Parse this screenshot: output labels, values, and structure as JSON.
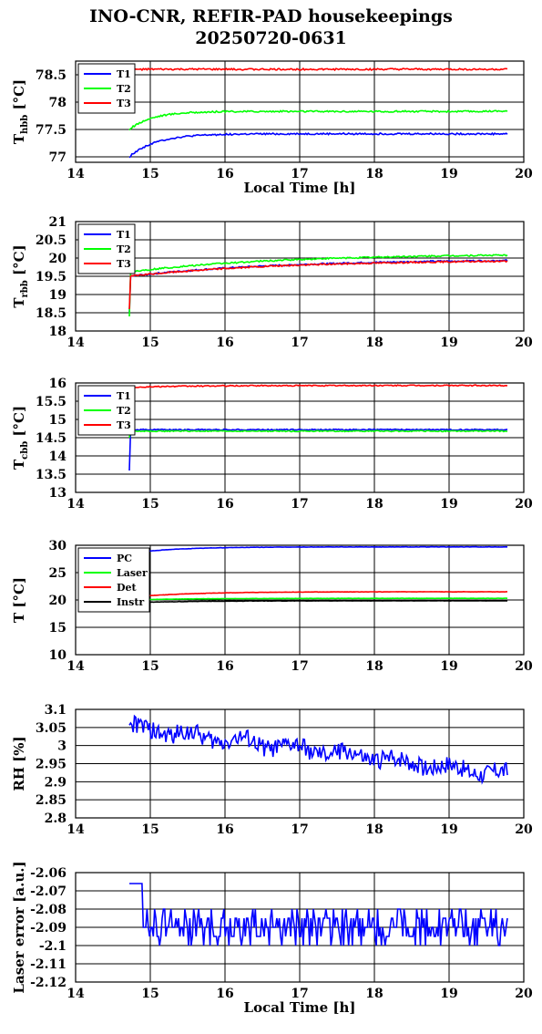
{
  "title_line1": "INO-CNR, REFIR-PAD housekeepings",
  "title_line2": "20250720-0631",
  "chart_data": [
    {
      "type": "line",
      "ylabel_main": "T",
      "ylabel_sub": "hbb",
      "ylabel_unit": " [°C]",
      "xlabel": "Local Time [h]",
      "xlim": [
        14,
        20
      ],
      "ylim": [
        76.9,
        78.75
      ],
      "xticks": [
        "14",
        "15",
        "16",
        "17",
        "18",
        "19",
        "20"
      ],
      "yticks": [
        {
          "v": 77,
          "t": "77"
        },
        {
          "v": 77.5,
          "t": "77.5"
        },
        {
          "v": 78,
          "t": "78"
        },
        {
          "v": 78.5,
          "t": "78.5"
        }
      ],
      "grid": true,
      "legend": "top-left",
      "series": [
        {
          "name": "T1",
          "color": "#0000ff",
          "kind": "approach",
          "start": 77.0,
          "end": 77.42,
          "tau": 0.35,
          "noise": 0.015
        },
        {
          "name": "T2",
          "color": "#00ff00",
          "kind": "approach",
          "start": 77.5,
          "end": 77.83,
          "tau": 0.3,
          "noise": 0.015
        },
        {
          "name": "T3",
          "color": "#ff0000",
          "kind": "flat",
          "start": 78.6,
          "end": 78.6,
          "tau": 0.3,
          "noise": 0.015
        }
      ]
    },
    {
      "type": "line",
      "ylabel_main": "T",
      "ylabel_sub": "rbb",
      "ylabel_unit": " [°C]",
      "xlabel": "",
      "xlim": [
        14,
        20
      ],
      "ylim": [
        18,
        21
      ],
      "xticks": [
        "14",
        "15",
        "16",
        "17",
        "18",
        "19",
        "20"
      ],
      "yticks": [
        {
          "v": 18,
          "t": "18"
        },
        {
          "v": 18.5,
          "t": "18.5"
        },
        {
          "v": 19,
          "t": "19"
        },
        {
          "v": 19.5,
          "t": "19.5"
        },
        {
          "v": 20,
          "t": "20"
        },
        {
          "v": 20.5,
          "t": "20.5"
        },
        {
          "v": 21,
          "t": "21"
        }
      ],
      "grid": true,
      "legend": "top-left",
      "series": [
        {
          "name": "T1",
          "color": "#0000ff",
          "kind": "rise",
          "start": 19.5,
          "end": 19.97,
          "jump": 18.5,
          "tau": 2.0,
          "noise": 0.02
        },
        {
          "name": "T2",
          "color": "#00ff00",
          "kind": "rise",
          "start": 19.62,
          "end": 20.12,
          "jump": 18.4,
          "tau": 2.0,
          "noise": 0.02
        },
        {
          "name": "T3",
          "color": "#ff0000",
          "kind": "rise",
          "start": 19.5,
          "end": 19.95,
          "jump": 18.6,
          "tau": 2.0,
          "noise": 0.02
        }
      ]
    },
    {
      "type": "line",
      "ylabel_main": "T",
      "ylabel_sub": "cbb",
      "ylabel_unit": " [°C]",
      "xlabel": "",
      "xlim": [
        14,
        20
      ],
      "ylim": [
        13,
        16
      ],
      "xticks": [
        "14",
        "15",
        "16",
        "17",
        "18",
        "19",
        "20"
      ],
      "yticks": [
        {
          "v": 13,
          "t": "13"
        },
        {
          "v": 13.5,
          "t": "13.5"
        },
        {
          "v": 14,
          "t": "14"
        },
        {
          "v": 14.5,
          "t": "14.5"
        },
        {
          "v": 15,
          "t": "15"
        },
        {
          "v": 15.5,
          "t": "15.5"
        },
        {
          "v": 16,
          "t": "16"
        }
      ],
      "grid": true,
      "legend": "top-left",
      "series": [
        {
          "name": "T1",
          "color": "#0000ff",
          "kind": "rise",
          "start": 14.72,
          "end": 14.72,
          "jump": 13.6,
          "tau": 0.5,
          "noise": 0.015
        },
        {
          "name": "T2",
          "color": "#00ff00",
          "kind": "rise",
          "start": 14.68,
          "end": 14.68,
          "jump": 14.5,
          "tau": 0.5,
          "noise": 0.015
        },
        {
          "name": "T3",
          "color": "#ff0000",
          "kind": "rise",
          "start": 15.88,
          "end": 15.93,
          "jump": 15.9,
          "tau": 0.8,
          "noise": 0.015
        }
      ]
    },
    {
      "type": "line",
      "ylabel_main": "T",
      "ylabel_sub": "",
      "ylabel_unit": " [°C]",
      "xlabel": "",
      "xlim": [
        14,
        20
      ],
      "ylim": [
        10,
        30
      ],
      "xticks": [
        "14",
        "15",
        "16",
        "17",
        "18",
        "19",
        "20"
      ],
      "yticks": [
        {
          "v": 10,
          "t": "10"
        },
        {
          "v": 15,
          "t": "15"
        },
        {
          "v": 20,
          "t": "20"
        },
        {
          "v": 25,
          "t": "25"
        },
        {
          "v": 30,
          "t": "30"
        }
      ],
      "grid": true,
      "legend": "top-left",
      "series": [
        {
          "name": "PC",
          "color": "#0000ff",
          "kind": "approach",
          "start": 28.5,
          "end": 29.7,
          "tau": 0.6,
          "noise": 0.03
        },
        {
          "name": "Laser",
          "color": "#00ff00",
          "kind": "approach",
          "start": 20.0,
          "end": 20.3,
          "tau": 0.8,
          "noise": 0.02
        },
        {
          "name": "Det",
          "color": "#ff0000",
          "kind": "approach",
          "start": 20.5,
          "end": 21.5,
          "tau": 0.8,
          "noise": 0.03
        },
        {
          "name": "Instr",
          "color": "#000000",
          "kind": "approach",
          "start": 19.5,
          "end": 19.85,
          "tau": 0.8,
          "noise": 0.03
        }
      ]
    },
    {
      "type": "line",
      "ylabel_main": "RH [%]",
      "ylabel_sub": "",
      "ylabel_unit": "",
      "xlabel": "",
      "xlim": [
        14,
        20
      ],
      "ylim": [
        2.8,
        3.1
      ],
      "xticks": [
        "14",
        "15",
        "16",
        "17",
        "18",
        "19",
        "20"
      ],
      "yticks": [
        {
          "v": 2.8,
          "t": "2.8"
        },
        {
          "v": 2.85,
          "t": "2.85"
        },
        {
          "v": 2.9,
          "t": "2.9"
        },
        {
          "v": 2.95,
          "t": "2.95"
        },
        {
          "v": 3,
          "t": "3"
        },
        {
          "v": 3.05,
          "t": "3.05"
        },
        {
          "v": 3.1,
          "t": "3.1"
        }
      ],
      "grid": true,
      "legend": "none",
      "series": [
        {
          "name": "",
          "color": "#0000ff",
          "kind": "rh",
          "start": 3.05,
          "end": 2.92,
          "tau": 1.0,
          "noise": 0.025
        }
      ]
    },
    {
      "type": "line",
      "ylabel_main": "Laser error [a.u.]",
      "ylabel_sub": "",
      "ylabel_unit": "",
      "xlabel": "Local Time [h]",
      "xlim": [
        14,
        20
      ],
      "ylim": [
        -2.12,
        -2.06
      ],
      "xticks": [
        "14",
        "15",
        "16",
        "17",
        "18",
        "19",
        "20"
      ],
      "yticks": [
        {
          "v": -2.12,
          "t": "-2.12"
        },
        {
          "v": -2.11,
          "t": "-2.11"
        },
        {
          "v": -2.1,
          "t": "-2.1"
        },
        {
          "v": -2.09,
          "t": "-2.09"
        },
        {
          "v": -2.08,
          "t": "-2.08"
        },
        {
          "v": -2.07,
          "t": "-2.07"
        },
        {
          "v": -2.06,
          "t": "-2.06"
        }
      ],
      "grid": true,
      "legend": "none",
      "series": [
        {
          "name": "",
          "color": "#0000ff",
          "kind": "laser",
          "start": -2.09,
          "end": -2.09,
          "tau": 1.0,
          "noise": 0.01
        }
      ]
    }
  ]
}
